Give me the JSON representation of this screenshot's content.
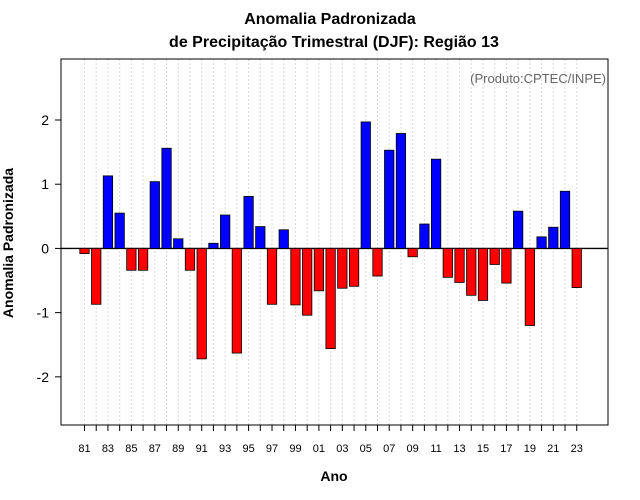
{
  "chart_data": {
    "type": "bar",
    "title_line1": "Anomalia Padronizada",
    "title_line2": "de Precipitação Trimestral (DJF): Região 13",
    "xlabel": "Ano",
    "ylabel": "Anomalia Padronizada",
    "credit": "(Produto:CPTEC/INPE)",
    "ylim": [
      -2.75,
      2.95
    ],
    "yticks": [
      -2,
      -1,
      0,
      1,
      2
    ],
    "ytick_labels": [
      "-2",
      "-1",
      "0",
      "1",
      "2"
    ],
    "categories": [
      "81",
      "82",
      "83",
      "84",
      "85",
      "86",
      "87",
      "88",
      "89",
      "90",
      "91",
      "92",
      "93",
      "94",
      "95",
      "96",
      "97",
      "98",
      "99",
      "00",
      "01",
      "02",
      "03",
      "04",
      "05",
      "06",
      "07",
      "08",
      "09",
      "10",
      "11",
      "12",
      "13",
      "14",
      "15",
      "16",
      "17",
      "18",
      "19",
      "20",
      "21",
      "22",
      "23"
    ],
    "xtick_labels": [
      "81",
      "83",
      "85",
      "87",
      "89",
      "91",
      "93",
      "95",
      "97",
      "99",
      "01",
      "03",
      "05",
      "07",
      "09",
      "11",
      "13",
      "15",
      "17",
      "19",
      "21",
      "23"
    ],
    "values": [
      -0.08,
      -0.87,
      1.13,
      0.55,
      -0.34,
      -0.34,
      1.04,
      1.56,
      0.15,
      -0.34,
      -1.72,
      0.08,
      0.52,
      -1.63,
      0.81,
      0.34,
      -0.87,
      0.29,
      -0.88,
      -1.04,
      -0.66,
      -1.56,
      -0.62,
      -0.59,
      1.97,
      -0.43,
      1.53,
      1.79,
      -0.13,
      0.38,
      1.39,
      -0.45,
      -0.53,
      -0.73,
      -0.81,
      -0.25,
      -0.54,
      0.58,
      -1.2,
      0.18,
      0.33,
      0.89,
      -0.61
    ],
    "colors": {
      "positive": "#0000ff",
      "negative": "#ff0000",
      "gridline": "#d9d9d9",
      "zero_line": "#000000"
    },
    "grid": true
  }
}
